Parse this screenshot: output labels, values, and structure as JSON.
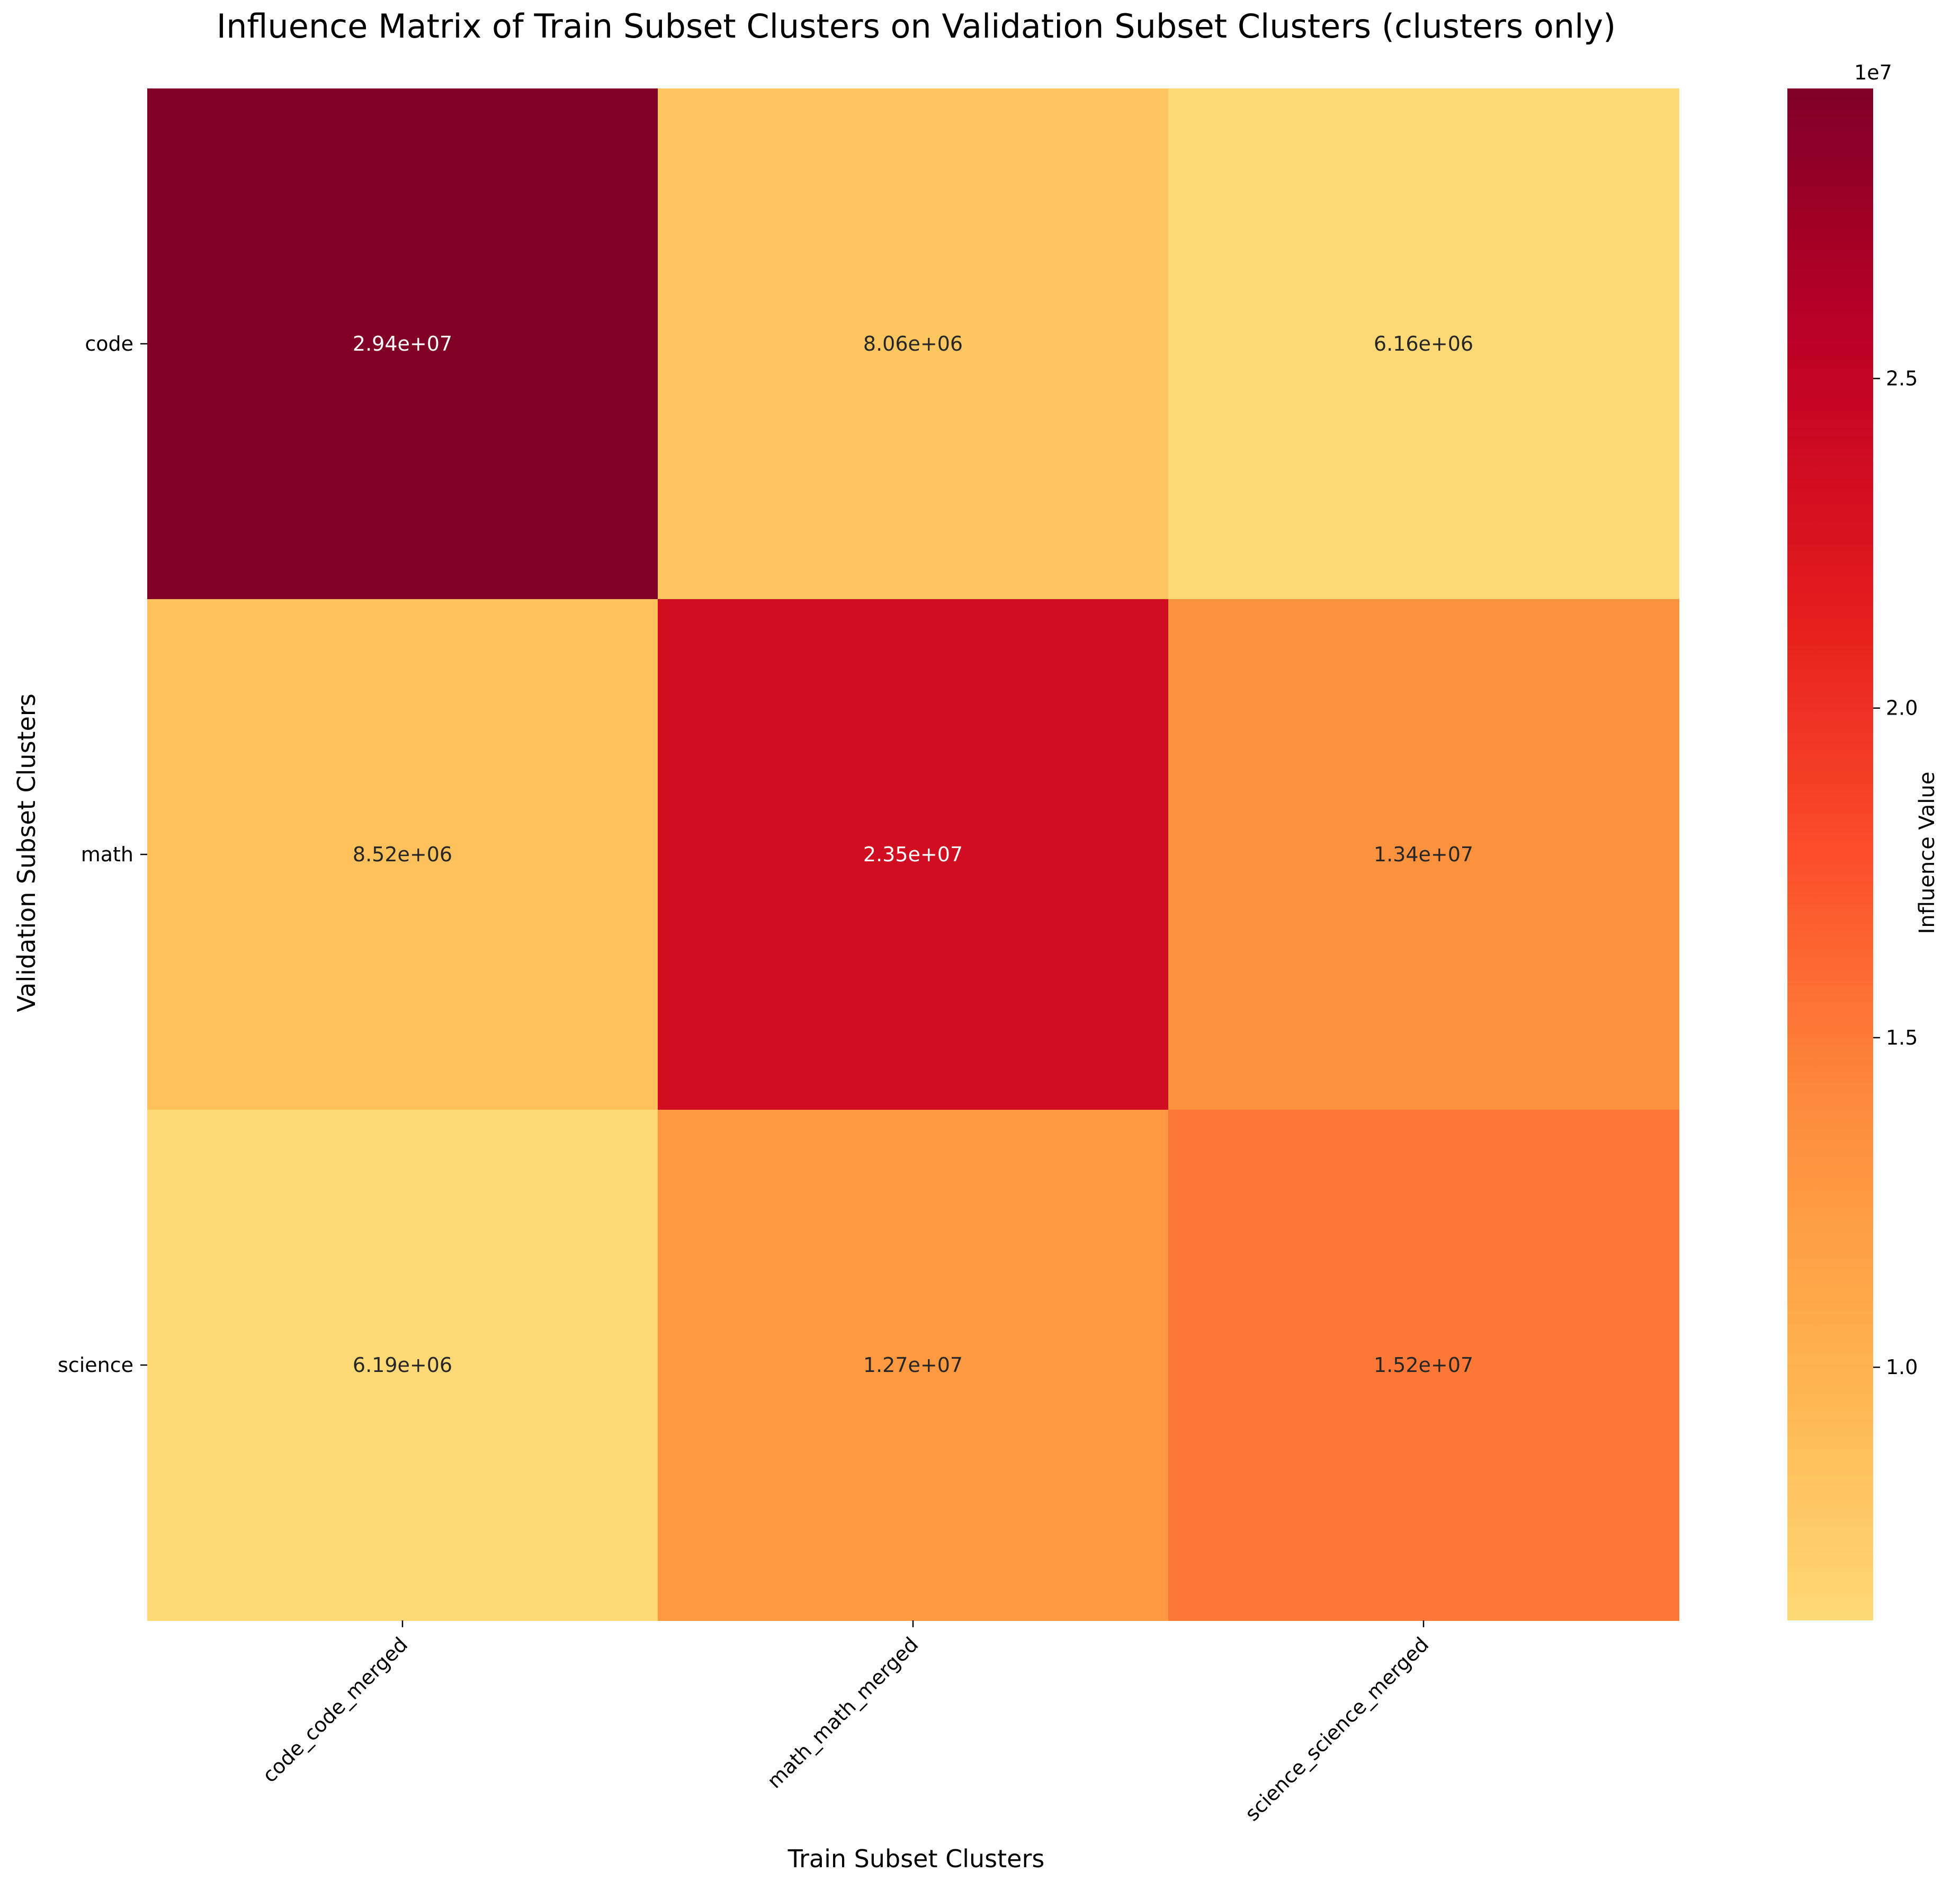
{
  "chart_data": {
    "type": "heatmap",
    "title": "Influence Matrix of Train Subset Clusters on Validation Subset Clusters (clusters only)",
    "xlabel": "Train Subset Clusters",
    "ylabel": "Validation Subset Clusters",
    "x_categories": [
      "code_code_merged",
      "math_math_merged",
      "science_science_merged"
    ],
    "y_categories": [
      "code",
      "math",
      "science"
    ],
    "values": [
      [
        29400000,
        8060000,
        6160000
      ],
      [
        8520000,
        23500000,
        13400000
      ],
      [
        6190000,
        12700000,
        15200000
      ]
    ],
    "cell_labels": [
      [
        "2.94e+07",
        "8.06e+06",
        "6.16e+06"
      ],
      [
        "8.52e+06",
        "2.35e+07",
        "1.34e+07"
      ],
      [
        "6.19e+06",
        "1.27e+07",
        "1.52e+07"
      ]
    ],
    "colorbar": {
      "label": "Influence Value",
      "offset_label": "1e7",
      "ticks": [
        1.0,
        1.5,
        2.0,
        2.5
      ],
      "tick_labels": [
        "1.0",
        "1.5",
        "2.0",
        "2.5"
      ],
      "scale": 10000000,
      "range": [
        6160000,
        29400000
      ]
    },
    "colormap": "YlOrRd",
    "colormap_range": [
      0.25,
      1.0
    ],
    "grid": false,
    "legend": "none"
  }
}
